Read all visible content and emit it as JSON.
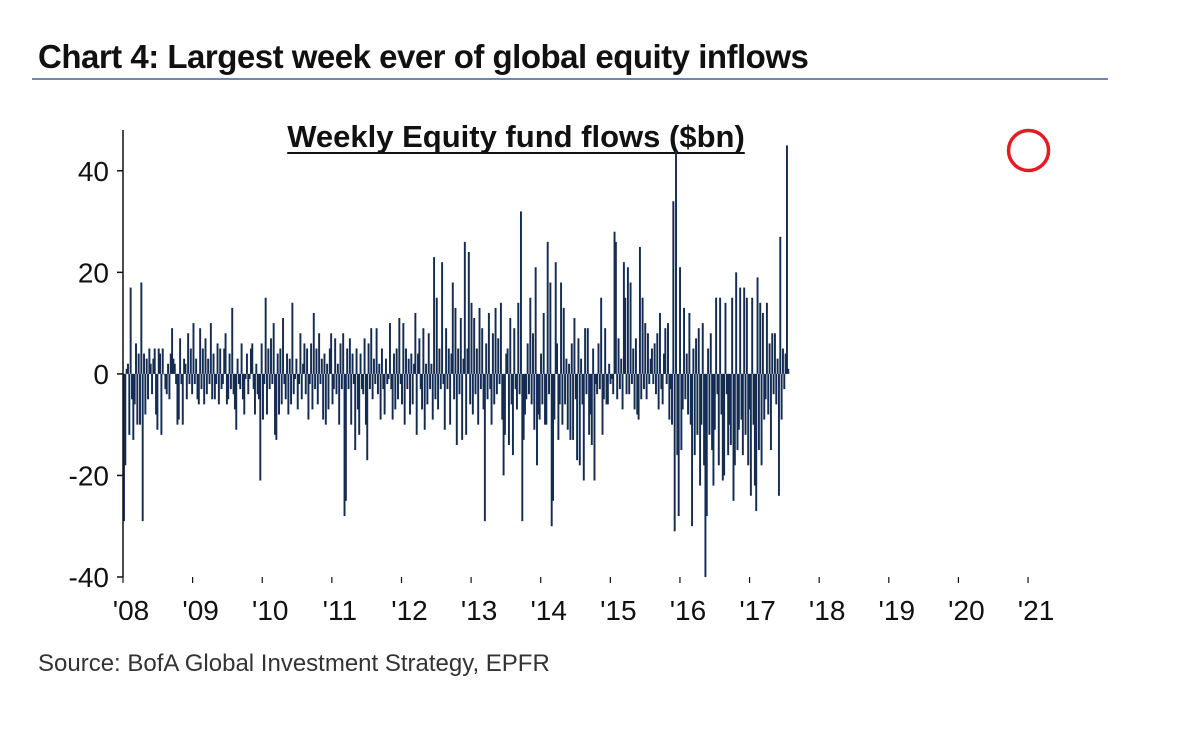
{
  "header": {
    "title": "Chart 4: Largest week ever of global equity inflows"
  },
  "source": "Source: BofA Global Investment Strategy, EPFR",
  "colors": {
    "bar": "#142c52",
    "highlight": "#e31b23",
    "rule": "#6f86b4"
  },
  "chart_data": {
    "type": "bar",
    "title": "Weekly Equity fund flows ($bn)",
    "xlabel": "",
    "ylabel": "",
    "ylim": [
      -40,
      50
    ],
    "yticks": [
      -40,
      -20,
      0,
      20,
      40
    ],
    "ytick_labels": [
      "-40",
      "-20",
      "0",
      "20",
      "40"
    ],
    "xrange": [
      2008.0,
      2021.1
    ],
    "xticks": [
      2008,
      2009,
      2010,
      2011,
      2012,
      2013,
      2014,
      2015,
      2016,
      2017,
      2018,
      2019,
      2020,
      2021
    ],
    "xtick_labels": [
      "'08",
      "'09",
      "'10",
      "'11",
      "'12",
      "'13",
      "'14",
      "'15",
      "'16",
      "'17",
      "'18",
      "'19",
      "'20",
      "'21"
    ],
    "grid": false,
    "legend": "none",
    "annotation": {
      "type": "circle",
      "x": 2020.95,
      "y": 44,
      "note": "largest week ever"
    },
    "series": [
      {
        "name": "Weekly equity fund flows",
        "x_start": 2008.0,
        "x_step": 0.0192,
        "values": [
          -29,
          -18,
          1,
          2,
          -12,
          17,
          -5,
          -13,
          -6,
          6,
          -10,
          4,
          -10,
          18,
          -29,
          4,
          -8,
          3,
          -5,
          5,
          2,
          -4,
          3,
          5,
          -8,
          -11,
          5,
          4,
          -12,
          5,
          0,
          -3,
          -4,
          2,
          -5,
          4,
          9,
          3,
          2,
          -2,
          -10,
          -9,
          7,
          -2,
          -10,
          3,
          2,
          -5,
          8,
          -2,
          5,
          -4,
          10,
          -2,
          3,
          -5,
          -6,
          9,
          -3,
          5,
          -6,
          7,
          -4,
          3,
          -2,
          10,
          -5,
          4,
          -5,
          -2,
          6,
          -6,
          5,
          -3,
          -2,
          5,
          8,
          -6,
          -5,
          4,
          -3,
          13,
          -4,
          -7,
          -11,
          3,
          -2,
          -3,
          6,
          -5,
          -8,
          -1,
          4,
          -4,
          -1,
          5,
          6,
          -3,
          -8,
          2,
          -4,
          -5,
          -21,
          6,
          -9,
          -2,
          15,
          -8,
          5,
          -3,
          7,
          -2,
          10,
          -12,
          -13,
          4,
          -8,
          5,
          -6,
          11,
          -2,
          -5,
          4,
          -8,
          3,
          -6,
          14,
          -4,
          -1,
          3,
          -7,
          -2,
          8,
          -5,
          2,
          6,
          -4,
          5,
          -9,
          -2,
          6,
          -7,
          12,
          -3,
          5,
          -6,
          8,
          -2,
          3,
          -9,
          4,
          -10,
          2,
          -7,
          5,
          8,
          -6,
          -3,
          7,
          -4,
          2,
          -10,
          6,
          -3,
          8,
          -28,
          -25,
          5,
          -3,
          7,
          -10,
          4,
          -2,
          -15,
          5,
          -7,
          -12,
          4,
          -3,
          -4,
          7,
          -10,
          -17,
          6,
          -3,
          9,
          -5,
          3,
          -2,
          9,
          -4,
          2,
          -9,
          5,
          -3,
          -8,
          3,
          -2,
          -1,
          10,
          -3,
          -9,
          4,
          -7,
          5,
          -5,
          11,
          -2,
          -6,
          10,
          -10,
          5,
          -3,
          3,
          -8,
          4,
          -6,
          2,
          12,
          -12,
          4,
          7,
          -3,
          -7,
          9,
          -11,
          2,
          -6,
          8,
          -3,
          2,
          -9,
          23,
          -5,
          15,
          -7,
          5,
          -3,
          22,
          -2,
          -11,
          9,
          -3,
          5,
          -10,
          4,
          18,
          -5,
          13,
          -14,
          5,
          -4,
          11,
          -13,
          3,
          26,
          -12,
          5,
          24,
          -6,
          14,
          -8,
          11,
          -4,
          5,
          -10,
          13,
          -3,
          9,
          -7,
          -29,
          6,
          -5,
          12,
          -3,
          -10,
          8,
          -6,
          13,
          -4,
          7,
          -2,
          14,
          -9,
          -20,
          -12,
          4,
          5,
          -14,
          11,
          -6,
          -16,
          9,
          -3,
          -7,
          14,
          -4,
          32,
          -29,
          -13,
          -8,
          -5,
          6,
          -4,
          15,
          -6,
          8,
          -11,
          21,
          -18,
          -8,
          -9,
          4,
          -6,
          12,
          -10,
          -10,
          26,
          -4,
          18,
          -30,
          -25,
          -9,
          22,
          6,
          -13,
          -6,
          18,
          -10,
          13,
          -6,
          3,
          -11,
          2,
          -13,
          6,
          -13,
          11,
          -5,
          -17,
          7,
          -18,
          3,
          -6,
          -21,
          9,
          -4,
          9,
          -12,
          -8,
          -14,
          5,
          -21,
          -2,
          -4,
          6,
          -3,
          15,
          -12,
          -5,
          9,
          -6,
          -6,
          2,
          -2,
          -1,
          -4,
          28,
          26,
          -5,
          7,
          -3,
          3,
          -7,
          22,
          15,
          -4,
          21,
          -4,
          18,
          -2,
          5,
          -7,
          7,
          -8,
          -9,
          25,
          -5,
          15,
          -3,
          10,
          -5,
          8,
          -2,
          3,
          5,
          -2,
          6,
          -4,
          8,
          -7,
          12,
          -3,
          -6,
          4,
          9,
          -2,
          10,
          -9,
          -3,
          -10,
          34,
          -31,
          44,
          -16,
          -28,
          21,
          -15,
          -7,
          13,
          -5,
          4,
          -8,
          12,
          -10,
          -30,
          5,
          -16,
          7,
          -12,
          9,
          -22,
          -10,
          10,
          -18,
          -40,
          -28,
          5,
          -12,
          8,
          -15,
          -22,
          -11,
          15,
          -4,
          -18,
          15,
          -8,
          -21,
          -20,
          14,
          -4,
          -16,
          -10,
          -14,
          15,
          -25,
          -18,
          20,
          -15,
          -11,
          17,
          -9,
          -16,
          17,
          -12,
          15,
          -18,
          -7,
          -24,
          15,
          -10,
          -22,
          -27,
          19,
          -15,
          14,
          -18,
          12,
          -9,
          -5,
          14,
          -8,
          6,
          -15,
          8,
          -4,
          8,
          -6,
          3,
          -24,
          27,
          -9,
          5,
          -3,
          4,
          45,
          1
        ]
      }
    ]
  }
}
